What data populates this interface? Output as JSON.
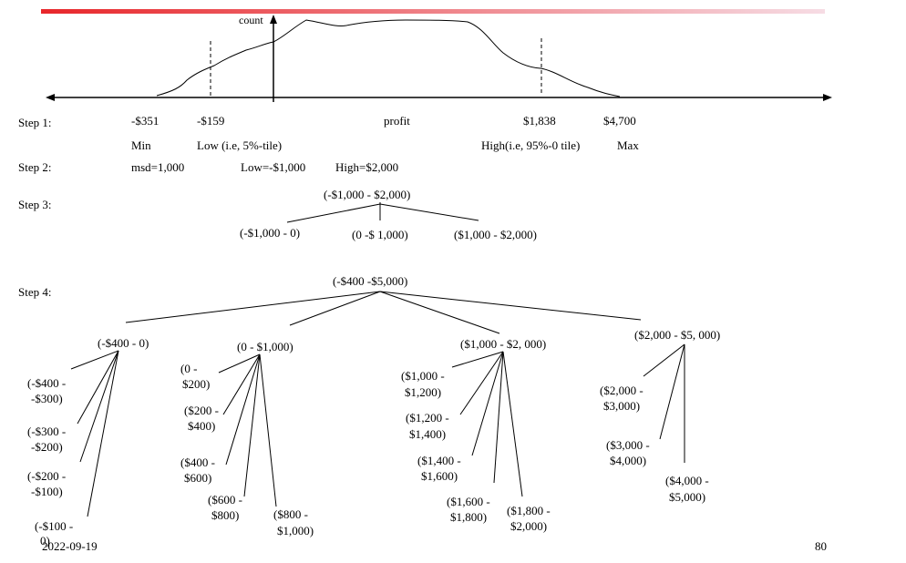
{
  "colors": {
    "title_bar": "#e8262a",
    "title_bar_fade": "#f6dce4",
    "ink": "#000000"
  },
  "histogram": {
    "y_label": "count",
    "step1": {
      "label": "Step 1:",
      "values": [
        "-$351",
        "-$159",
        "profit",
        "$1,838",
        "$4,700"
      ],
      "descriptors": [
        "Min",
        "Low (i.e, 5%-tile)",
        "High(i.e, 95%-0 tile)",
        "Max"
      ]
    }
  },
  "step2": {
    "label": "Step 2:",
    "items": [
      "msd=1,000",
      "Low=-$1,000",
      "High=$2,000"
    ]
  },
  "step3": {
    "label": "Step 3:",
    "root": "(-$1,000  - $2,000)",
    "children": [
      "(-$1,000 - 0)",
      "(0 -$ 1,000)",
      "($1,000 - $2,000)"
    ]
  },
  "step4": {
    "label": "Step 4:",
    "root": "(-$400 -$5,000)",
    "groups": [
      {
        "label": "(-$400 - 0)",
        "children": [
          [
            "(-$400 -",
            "-$300)"
          ],
          [
            "(-$300 -",
            "-$200)"
          ],
          [
            "(-$200 -",
            "-$100)"
          ],
          [
            "(-$100 -",
            "0)"
          ]
        ]
      },
      {
        "label": "(0 - $1,000)",
        "children": [
          [
            "(0 -",
            "$200)"
          ],
          [
            "($200 -",
            "$400)"
          ],
          [
            "($400 -",
            "$600)"
          ],
          [
            "($600 -",
            "$800)"
          ],
          [
            "($800 -",
            "$1,000)"
          ]
        ]
      },
      {
        "label": "($1,000 - $2, 000)",
        "children": [
          [
            "($1,000 -",
            "$1,200)"
          ],
          [
            "($1,200 -",
            "$1,400)"
          ],
          [
            "($1,400 -",
            "$1,600)"
          ],
          [
            "($1,600 -",
            "$1,800)"
          ],
          [
            "($1,800 -",
            "$2,000)"
          ]
        ]
      },
      {
        "label": "($2,000 - $5, 000)",
        "children": [
          [
            "($2,000 -",
            "$3,000)"
          ],
          [
            "($3,000 -",
            "$4,000)"
          ],
          [
            "($4,000 -",
            "$5,000)"
          ]
        ]
      }
    ]
  },
  "footer": {
    "date": "2022-09-19",
    "page": "80"
  }
}
